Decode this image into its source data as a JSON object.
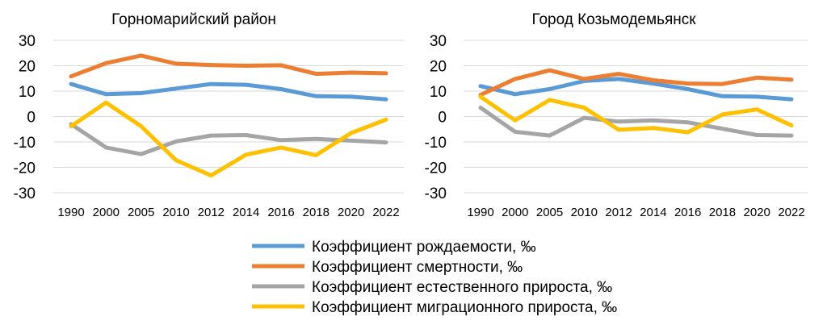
{
  "chart_data": [
    {
      "type": "line",
      "title": "Горномарийский район",
      "categories": [
        "1990",
        "2000",
        "2005",
        "2010",
        "2012",
        "2014",
        "2016",
        "2018",
        "2020",
        "2022"
      ],
      "y_ticks": [
        "30",
        "20",
        "10",
        "0",
        "-10",
        "-20",
        "-30"
      ],
      "ylim": [
        -30,
        30
      ],
      "grid": true,
      "series": [
        {
          "name": "Коэффициент рождаемости, ‰",
          "color": "#5B9BD5",
          "values": [
            12.8,
            8.8,
            9.2,
            11.0,
            12.8,
            12.5,
            10.8,
            8.0,
            7.8,
            6.8
          ]
        },
        {
          "name": "Коэффициент смертности, ‰",
          "color": "#ED7D31",
          "values": [
            15.8,
            21.0,
            24.0,
            20.8,
            20.3,
            20.0,
            20.2,
            16.8,
            17.3,
            17.0
          ]
        },
        {
          "name": "Коэффициент естественного прироста, ‰",
          "color": "#A5A5A5",
          "values": [
            -3.0,
            -12.2,
            -14.8,
            -9.8,
            -7.5,
            -7.3,
            -9.3,
            -8.8,
            -9.5,
            -10.2
          ]
        },
        {
          "name": "Коэффициент миграционного прироста, ‰",
          "color": "#FFC000",
          "values": [
            -3.8,
            5.5,
            -3.8,
            -17.2,
            -23.2,
            -15.0,
            -12.2,
            -15.2,
            -6.5,
            -1.2
          ]
        }
      ]
    },
    {
      "type": "line",
      "title": "Город Козьмодемьянск",
      "categories": [
        "1990",
        "2000",
        "2005",
        "2010",
        "2012",
        "2014",
        "2016",
        "2018",
        "2020",
        "2022"
      ],
      "y_ticks": [
        "30",
        "20",
        "10",
        "0",
        "-10",
        "-20",
        "-30"
      ],
      "ylim": [
        -30,
        30
      ],
      "grid": true,
      "series": [
        {
          "name": "Коэффициент рождаемости, ‰",
          "color": "#5B9BD5",
          "values": [
            12.0,
            8.8,
            10.8,
            14.0,
            14.8,
            13.0,
            10.8,
            8.0,
            7.8,
            6.8
          ]
        },
        {
          "name": "Коэффициент смертности, ‰",
          "color": "#ED7D31",
          "values": [
            8.5,
            14.8,
            18.2,
            14.8,
            16.8,
            14.3,
            13.0,
            12.8,
            15.3,
            14.5
          ]
        },
        {
          "name": "Коэффициент естественного прироста, ‰",
          "color": "#A5A5A5",
          "values": [
            3.5,
            -6.0,
            -7.5,
            -0.5,
            -2.0,
            -1.5,
            -2.3,
            -4.8,
            -7.3,
            -7.5
          ]
        },
        {
          "name": "Коэффициент миграционного прироста, ‰",
          "color": "#FFC000",
          "values": [
            7.8,
            -1.5,
            6.5,
            3.5,
            -5.2,
            -4.5,
            -6.2,
            0.8,
            2.8,
            -3.5
          ]
        }
      ]
    }
  ],
  "legend": [
    {
      "label": "Коэффициент рождаемости, ‰",
      "color": "#5B9BD5"
    },
    {
      "label": "Коэффициент смертности, ‰",
      "color": "#ED7D31"
    },
    {
      "label": "Коэффициент естественного прироста, ‰",
      "color": "#A5A5A5"
    },
    {
      "label": "Коэффициент миграционного прироста, ‰",
      "color": "#FFC000"
    }
  ]
}
